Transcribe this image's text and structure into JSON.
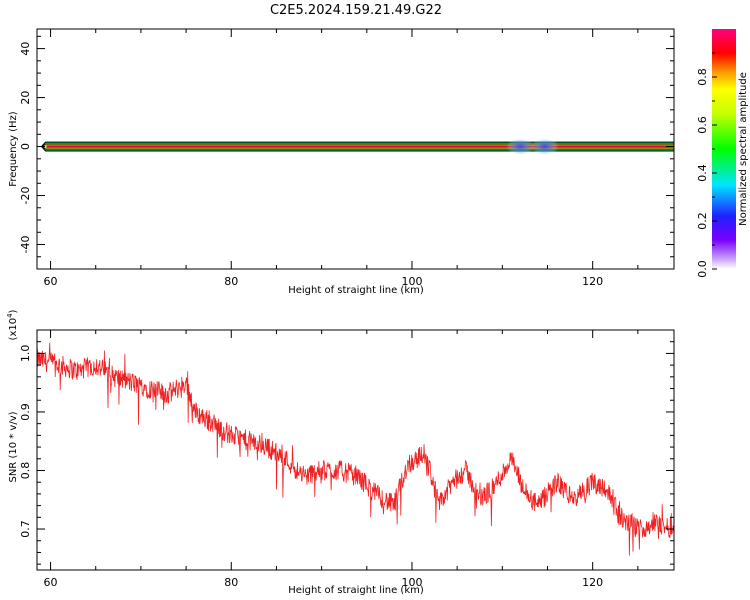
{
  "chart_data": [
    {
      "type": "heatmap",
      "title": "C2E5.2024.159.21.49.G22",
      "xlabel": "Height of straight line (km)",
      "ylabel": "Frequency (Hz)",
      "xlim": [
        58.5,
        129
      ],
      "ylim": [
        -50,
        48
      ],
      "xticks": [
        60,
        80,
        100,
        120
      ],
      "yticks": [
        -40,
        -20,
        0,
        20,
        40
      ],
      "band": {
        "x_start": 59,
        "x_end": 129,
        "freq_center": 0,
        "half_widths": [
          1.8,
          1.0,
          0.5
        ]
      },
      "blobs": [
        {
          "x": 112,
          "freq": 0
        },
        {
          "x": 114.7,
          "freq": 0
        }
      ],
      "colorbar": {
        "label": "Normalized spectral amplitude",
        "ticks": [
          "0.0",
          "0.2",
          "0.4",
          "0.6",
          "0.8"
        ],
        "range": [
          0,
          1
        ]
      },
      "colors": {
        "outer": "#00cc66",
        "mid": "#e6e600",
        "core": "#e8004d"
      }
    },
    {
      "type": "line",
      "xlabel": "Height of straight line (km)",
      "ylabel": "SNR (10 * v/v)",
      "multiplier": "(x10",
      "multiplier_exp": "4",
      "multiplier_close": ")",
      "xlim": [
        58.5,
        129
      ],
      "ylim": [
        0.63,
        1.04
      ],
      "xticks": [
        60,
        80,
        100,
        120
      ],
      "yticks": [
        "0.7",
        "0.8",
        "0.9",
        "1.0"
      ],
      "color": "#ee2222",
      "trend_x": [
        58.5,
        61,
        63,
        65,
        67,
        69,
        71,
        73,
        75,
        76,
        78,
        80,
        82,
        84,
        86,
        88,
        90,
        92,
        94,
        96,
        98,
        99.5,
        101.5,
        103,
        104.5,
        106,
        107.5,
        109,
        111,
        112.5,
        114,
        116,
        118,
        120,
        121.5,
        123,
        125,
        127,
        129
      ],
      "trend_y": [
        0.99,
        0.98,
        0.97,
        0.98,
        0.96,
        0.95,
        0.94,
        0.93,
        0.95,
        0.9,
        0.88,
        0.86,
        0.85,
        0.84,
        0.82,
        0.79,
        0.8,
        0.8,
        0.79,
        0.76,
        0.74,
        0.81,
        0.83,
        0.74,
        0.78,
        0.8,
        0.75,
        0.77,
        0.82,
        0.76,
        0.74,
        0.78,
        0.75,
        0.78,
        0.77,
        0.72,
        0.7,
        0.71,
        0.7
      ],
      "noise_amplitude": 0.018,
      "points": 1400
    }
  ]
}
